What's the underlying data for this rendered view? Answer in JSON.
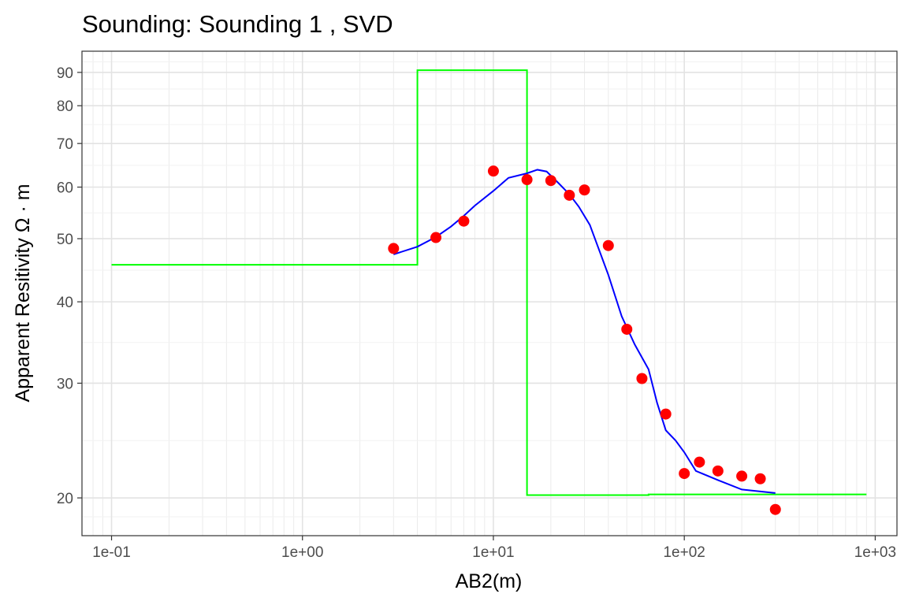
{
  "chart_data": {
    "type": "scatter",
    "title": "Sounding:  Sounding 1 , SVD",
    "xlabel": "AB2(m)",
    "ylabel": "Apparent Resitivity Ω · m",
    "x_scale": "log10",
    "y_scale": "log10",
    "xlim": [
      0.07,
      1300
    ],
    "ylim": [
      17.5,
      97
    ],
    "x_ticks": [
      {
        "value": 0.1,
        "label": "1e-01"
      },
      {
        "value": 1,
        "label": "1e+00"
      },
      {
        "value": 10,
        "label": "1e+01"
      },
      {
        "value": 100,
        "label": "1e+02"
      },
      {
        "value": 1000,
        "label": "1e+03"
      }
    ],
    "y_ticks": [
      {
        "value": 20,
        "label": "20"
      },
      {
        "value": 30,
        "label": "30"
      },
      {
        "value": 40,
        "label": "40"
      },
      {
        "value": 50,
        "label": "50"
      },
      {
        "value": 60,
        "label": "60"
      },
      {
        "value": 70,
        "label": "70"
      },
      {
        "value": 80,
        "label": "80"
      },
      {
        "value": 90,
        "label": "90"
      }
    ],
    "grid": true,
    "series": [
      {
        "type": "scatter",
        "color": "#ff0000",
        "points": [
          [
            3,
            48.3
          ],
          [
            5,
            50.2
          ],
          [
            7,
            53.2
          ],
          [
            10,
            63.5
          ],
          [
            15,
            61.6
          ],
          [
            20,
            61.4
          ],
          [
            25,
            58.3
          ],
          [
            30,
            59.4
          ],
          [
            40,
            48.8
          ],
          [
            50,
            36.3
          ],
          [
            60,
            30.5
          ],
          [
            80,
            26.9
          ],
          [
            100,
            21.8
          ],
          [
            120,
            22.7
          ],
          [
            150,
            22
          ],
          [
            200,
            21.6
          ],
          [
            250,
            21.4
          ],
          [
            300,
            19.2
          ]
        ]
      },
      {
        "type": "line",
        "color": "#0000ff",
        "points": [
          [
            3,
            47.3
          ],
          [
            4,
            48.6
          ],
          [
            5,
            50.3
          ],
          [
            6,
            52.2
          ],
          [
            7,
            54.2
          ],
          [
            8,
            56.2
          ],
          [
            10,
            59.2
          ],
          [
            12,
            62
          ],
          [
            15,
            63
          ],
          [
            17,
            63.8
          ],
          [
            19,
            63.4
          ],
          [
            22,
            60.8
          ],
          [
            25,
            58.5
          ],
          [
            28,
            56
          ],
          [
            32,
            52.5
          ],
          [
            40,
            44
          ],
          [
            47,
            38
          ],
          [
            55,
            34.4
          ],
          [
            65,
            31.5
          ],
          [
            72,
            28
          ],
          [
            80,
            25.4
          ],
          [
            90,
            24.5
          ],
          [
            100,
            23.5
          ],
          [
            115,
            22
          ],
          [
            150,
            21.3
          ],
          [
            200,
            20.6
          ],
          [
            300,
            20.35
          ]
        ]
      },
      {
        "type": "step",
        "color": "#00ff00",
        "points": [
          [
            0.1,
            45.6
          ],
          [
            4,
            45.6
          ],
          [
            4,
            90.7
          ],
          [
            15,
            90.7
          ],
          [
            15,
            20.2
          ],
          [
            65,
            20.2
          ],
          [
            65,
            20.25
          ],
          [
            900,
            20.25
          ]
        ]
      }
    ]
  }
}
